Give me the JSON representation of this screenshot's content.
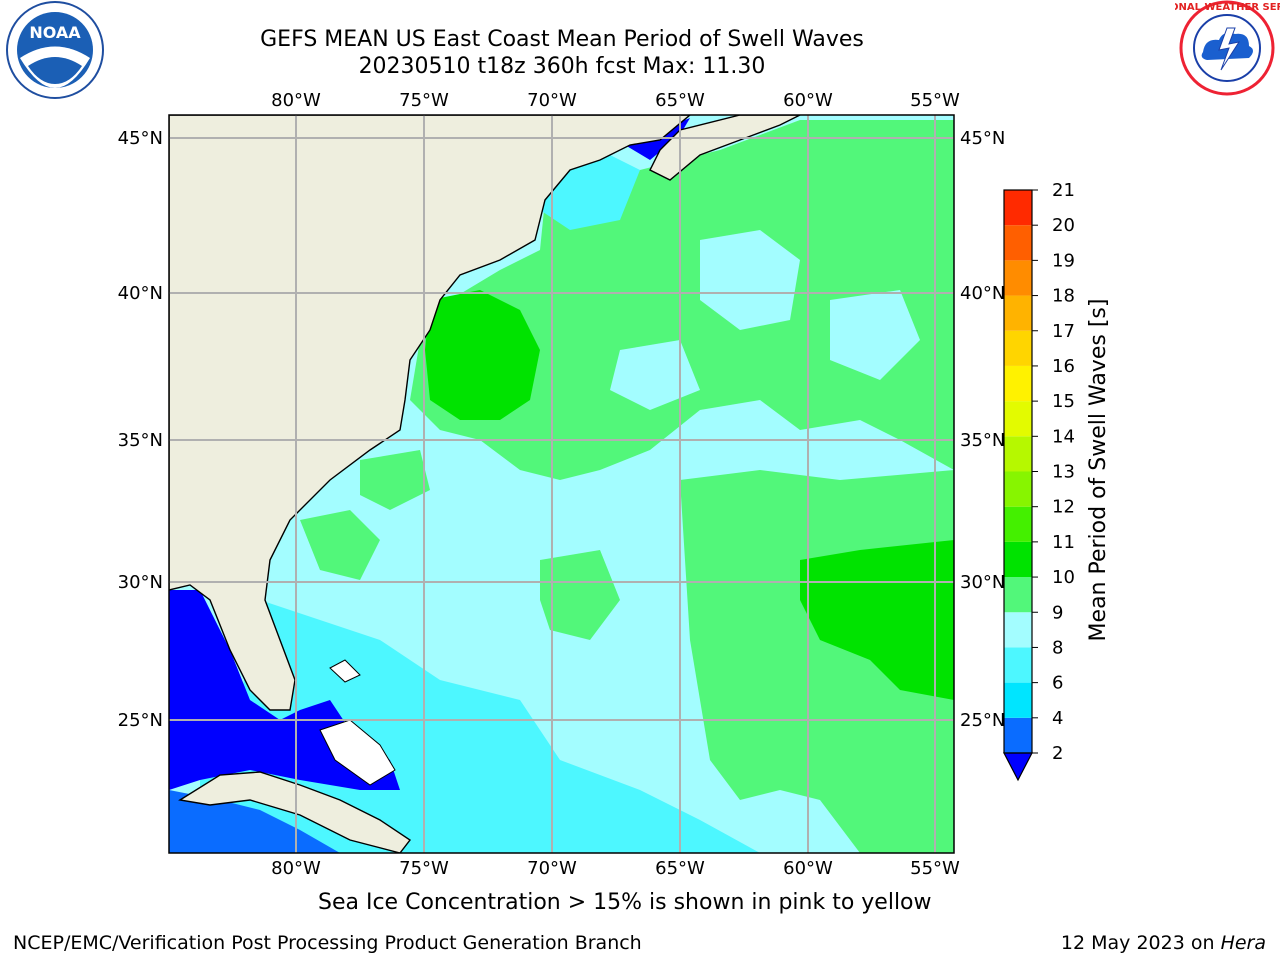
{
  "title": {
    "line1": "GEFS MEAN US East Coast Mean Period of Swell Waves",
    "line2": "20230510 t18z 360h fcst   Max: 11.30"
  },
  "map": {
    "lon_labels": [
      "80°W",
      "75°W",
      "70°W",
      "65°W",
      "60°W",
      "55°W"
    ],
    "lat_labels": [
      "45°N",
      "40°N",
      "35°N",
      "30°N",
      "25°N"
    ],
    "grid": true
  },
  "colorbar": {
    "label": "Mean Period of Swell Waves [s]",
    "ticks": [
      "2",
      "4",
      "6",
      "8",
      "9",
      "10",
      "11",
      "12",
      "13",
      "14",
      "15",
      "16",
      "17",
      "18",
      "19",
      "20",
      "21"
    ],
    "colors": [
      "#0a6cff",
      "#00e5ff",
      "#4df7ff",
      "#a3fdff",
      "#52f77a",
      "#00e300",
      "#44f000",
      "#87f500",
      "#b6f800",
      "#e3fb00",
      "#fff200",
      "#ffd500",
      "#ffb300",
      "#ff8c00",
      "#ff5f00",
      "#ff2a00",
      "#ff0000"
    ],
    "under_color": "#0000ff"
  },
  "footer": {
    "note": "Sea Ice Concentration > 15% is shown in pink to yellow",
    "credit": "NCEP/EMC/Verification Post Processing Product Generation Branch",
    "date": "12 May 2023 on",
    "machine": "Hera"
  },
  "logos": {
    "noaa": "NOAA",
    "nws": "NATIONAL WEATHER SERVICE"
  }
}
